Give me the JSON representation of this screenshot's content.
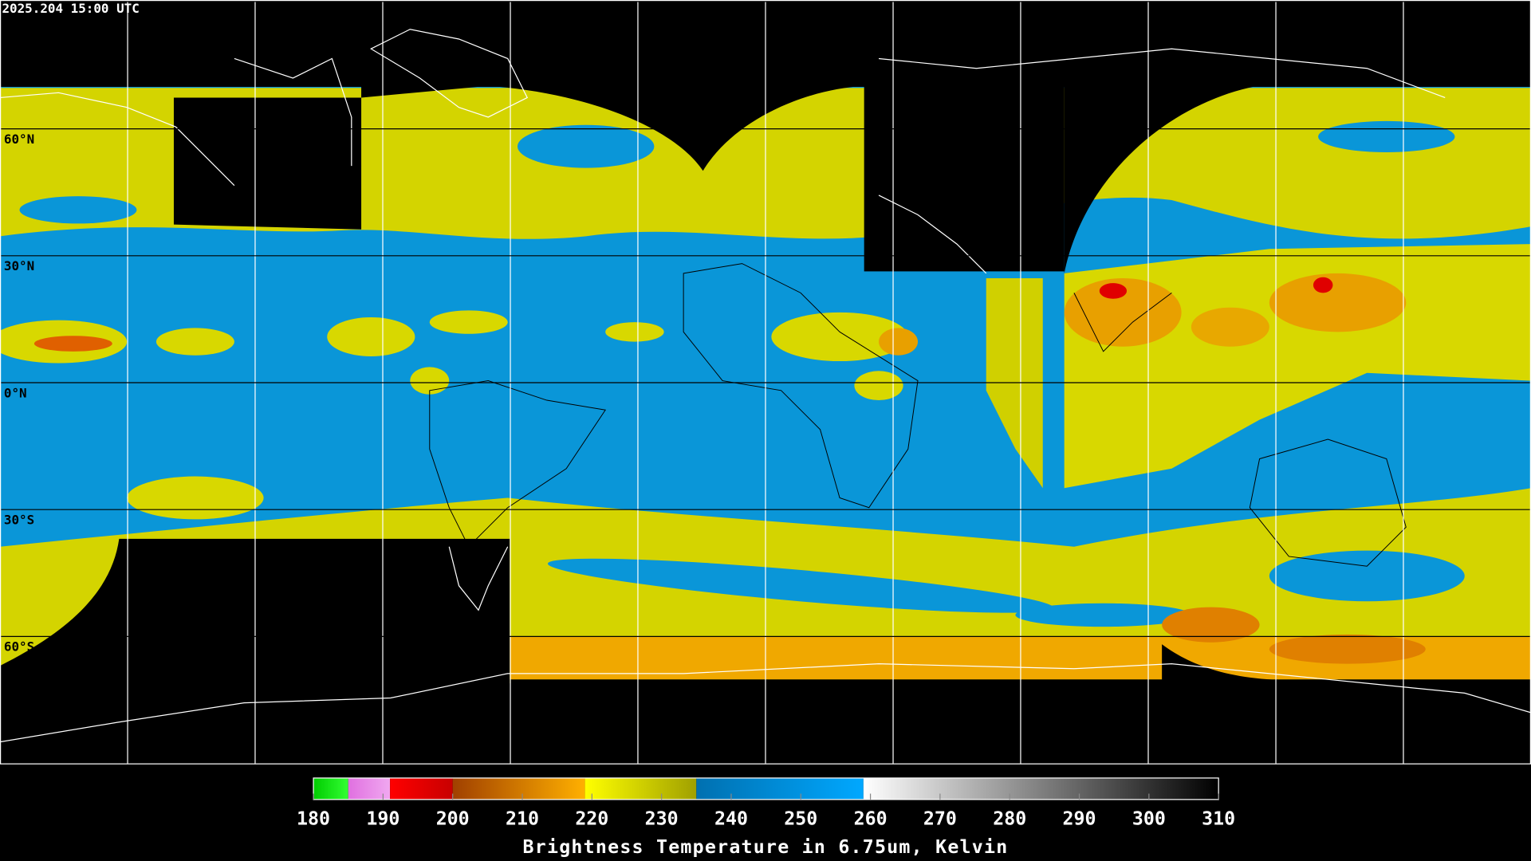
{
  "header": {
    "timestamp": "2025.204 15:00 UTC"
  },
  "map": {
    "lat_lines": [
      {
        "value": 60,
        "label": "60°N"
      },
      {
        "value": 30,
        "label": "30°N"
      },
      {
        "value": 0,
        "label": "0°N"
      },
      {
        "value": -30,
        "label": "30°S"
      },
      {
        "value": -60,
        "label": "60°S"
      }
    ]
  },
  "colorbar": {
    "title": "Brightness Temperature in 6.75um, Kelvin",
    "range": [
      180,
      310
    ],
    "ticks": [
      180,
      190,
      200,
      210,
      220,
      230,
      240,
      250,
      260,
      270,
      280,
      290,
      300,
      310
    ],
    "segments": [
      {
        "from": 180,
        "to": 185,
        "colors": [
          "#00cc00",
          "#33ff33"
        ]
      },
      {
        "from": 185,
        "to": 191,
        "colors": [
          "#e070e0",
          "#f0a8f0"
        ]
      },
      {
        "from": 191,
        "to": 200,
        "colors": [
          "#ff0000",
          "#c80000"
        ]
      },
      {
        "from": 200,
        "to": 219,
        "colors": [
          "#a04000",
          "#ffb000"
        ]
      },
      {
        "from": 219,
        "to": 235,
        "colors": [
          "#ffff00",
          "#a0a000"
        ]
      },
      {
        "from": 235,
        "to": 259,
        "colors": [
          "#0070b0",
          "#00a8ff"
        ]
      },
      {
        "from": 259,
        "to": 310,
        "colors": [
          "#ffffff",
          "#000000"
        ]
      }
    ]
  }
}
